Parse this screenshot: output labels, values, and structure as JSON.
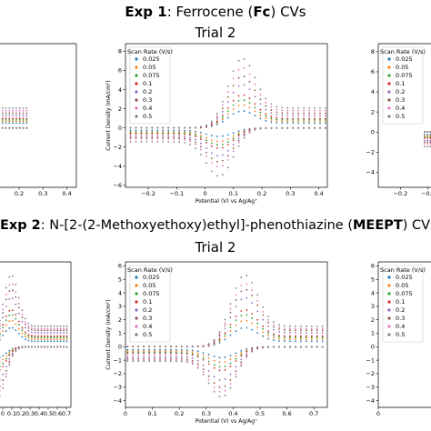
{
  "exp1": {
    "label": "Exp 1",
    "title_rest": ": Ferrocene (",
    "abbr": "Fc",
    "title_end": ") CVs",
    "subtitle": "Trial 2"
  },
  "exp2": {
    "label": "Exp 2",
    "title_rest": ": N-[2-(2-Methoxyethoxy)ethyl]-phenothiazine (",
    "abbr": "MEEPT",
    "title_end": ") CVs",
    "subtitle": "Trial 2"
  },
  "colors": [
    "#1f77b4",
    "#ff7f0e",
    "#2ca02c",
    "#d62728",
    "#9467bd",
    "#8c564b",
    "#e377c2",
    "#7f7f7f"
  ],
  "chart_data": [
    {
      "id": "exp1-trial2",
      "type": "scatter",
      "xlabel": "Potential (V) vs Ag/Ag⁺",
      "ylabel": "Current Density (mA/cm²)",
      "xlim": [
        -0.28,
        0.43
      ],
      "ylim": [
        -6.2,
        8.8
      ],
      "xticks": [
        -0.2,
        -0.1,
        0.0,
        0.1,
        0.2,
        0.3,
        0.4
      ],
      "yticks": [
        -6,
        -4,
        -2,
        0,
        2,
        4,
        6,
        8
      ],
      "legend_title": "Scan Rate (V/s)",
      "legend_position": "upper left",
      "grid": false,
      "e_half": 0.09,
      "series": [
        {
          "name": "0.025",
          "ipa": 2.0,
          "ipc": -1.0
        },
        {
          "name": "0.05",
          "ipa": 2.7,
          "ipc": -1.6
        },
        {
          "name": "0.075",
          "ipa": 3.3,
          "ipc": -2.0
        },
        {
          "name": "0.1",
          "ipa": 3.9,
          "ipc": -2.4
        },
        {
          "name": "0.2",
          "ipa": 5.1,
          "ipc": -3.3
        },
        {
          "name": "0.3",
          "ipa": 6.1,
          "ipc": -4.0
        },
        {
          "name": "0.4",
          "ipa": 7.1,
          "ipc": -4.6
        },
        {
          "name": "0.5",
          "ipa": 8.2,
          "ipc": -5.7
        }
      ]
    },
    {
      "id": "exp2-trial2",
      "type": "scatter",
      "xlabel": "Potential (V) vs Ag/Ag⁺",
      "ylabel": "Current Density (mA/cm²)",
      "xlim": [
        0.0,
        0.75
      ],
      "ylim": [
        -4.5,
        6.3
      ],
      "xticks": [
        0.0,
        0.1,
        0.2,
        0.3,
        0.4,
        0.5,
        0.6,
        0.7
      ],
      "yticks": [
        -4,
        -3,
        -2,
        -1,
        0,
        1,
        2,
        3,
        4,
        5,
        6
      ],
      "legend_title": "Scan Rate (V/s)",
      "legend_position": "upper left",
      "grid": false,
      "e_half": 0.4,
      "series": [
        {
          "name": "0.025",
          "ipa": 1.6,
          "ipc": -0.9
        },
        {
          "name": "0.05",
          "ipa": 2.2,
          "ipc": -1.3
        },
        {
          "name": "0.075",
          "ipa": 2.7,
          "ipc": -1.7
        },
        {
          "name": "0.1",
          "ipa": 3.1,
          "ipc": -2.0
        },
        {
          "name": "0.2",
          "ipa": 4.1,
          "ipc": -2.8
        },
        {
          "name": "0.3",
          "ipa": 4.8,
          "ipc": -3.4
        },
        {
          "name": "0.4",
          "ipa": 5.3,
          "ipc": -3.8
        },
        {
          "name": "0.5",
          "ipa": 6.0,
          "ipc": -4.2
        }
      ]
    },
    {
      "id": "exp1-left-partial",
      "type": "scatter",
      "xticks": [
        0.2,
        0.3,
        0.4
      ],
      "partial": true
    },
    {
      "id": "exp1-right-partial",
      "type": "scatter",
      "yticks": [
        -4,
        -2,
        0,
        2,
        4,
        6,
        8
      ],
      "xticks": [
        -0.2,
        -0.1
      ],
      "legend_title": "Scan Rate (V/s)",
      "partial": true
    },
    {
      "id": "exp2-left-partial",
      "type": "scatter",
      "xticks": [
        0.0,
        0.1,
        0.2,
        0.3,
        0.4,
        0.5,
        0.6,
        0.7
      ],
      "partial": true
    },
    {
      "id": "exp2-right-partial",
      "type": "scatter",
      "yticks": [
        -4,
        -3,
        -2,
        -1,
        0,
        1,
        2,
        3,
        4,
        5,
        6
      ],
      "xticks": [
        0.0
      ],
      "legend_title": "Scan Rate (V/s)",
      "partial": true
    }
  ]
}
